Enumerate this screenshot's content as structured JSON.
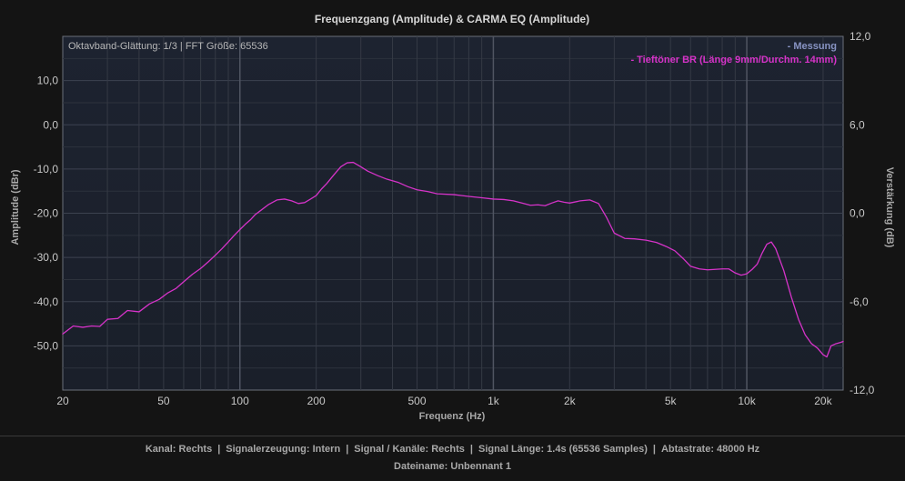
{
  "chart_data": {
    "type": "line",
    "title": "Frequenzgang (Amplitude) & CARMA EQ (Amplitude)",
    "xlabel": "Frequenz (Hz)",
    "ylabel": "Amplitude (dBr)",
    "y2label": "Verstärkung (dB)",
    "x_scale": "log",
    "xlim": [
      20,
      24000
    ],
    "ylim": [
      -60,
      20
    ],
    "y2lim": [
      -12,
      12
    ],
    "grid": true,
    "legend_position": "top-right",
    "x_tick_labels": [
      "20",
      "50",
      "100",
      "200",
      "500",
      "1k",
      "2k",
      "5k",
      "10k",
      "20k"
    ],
    "x_tick_values": [
      20,
      50,
      100,
      200,
      500,
      1000,
      2000,
      5000,
      10000,
      20000
    ],
    "y_tick_labels": [
      "10,0",
      "0,0",
      "-10,0",
      "-20,0",
      "-30,0",
      "-40,0",
      "-50,0"
    ],
    "y_tick_values": [
      10,
      0,
      -10,
      -20,
      -30,
      -40,
      -50
    ],
    "y2_tick_labels": [
      "12,0",
      "6,0",
      "0,0",
      "-6,0",
      "-12,0"
    ],
    "y2_tick_values": [
      12,
      6,
      0,
      -6,
      -12
    ],
    "annotation": "Oktavband-Glättung: 1/3 | FFT Größe: 65536",
    "series": [
      {
        "name": "- Messung",
        "color": "#8894c4",
        "x": [],
        "y": []
      },
      {
        "name": "- Tieftöner BR (Länge 9mm/Durchm. 14mm)",
        "color": "#d633c9",
        "x": [
          20,
          22,
          24,
          26,
          28,
          30,
          33,
          36,
          40,
          44,
          48,
          52,
          56,
          60,
          65,
          70,
          75,
          80,
          85,
          90,
          95,
          100,
          105,
          110,
          115,
          120,
          130,
          140,
          150,
          160,
          170,
          180,
          190,
          200,
          210,
          220,
          235,
          250,
          265,
          280,
          300,
          320,
          350,
          380,
          420,
          460,
          500,
          550,
          600,
          700,
          800,
          900,
          1000,
          1100,
          1200,
          1300,
          1400,
          1500,
          1600,
          1700,
          1800,
          1900,
          2000,
          2200,
          2400,
          2600,
          2800,
          3000,
          3300,
          3600,
          4000,
          4400,
          4800,
          5200,
          5600,
          6000,
          6500,
          7000,
          7500,
          8000,
          8500,
          9000,
          9500,
          10000,
          10500,
          11000,
          11500,
          12000,
          12500,
          13000,
          14000,
          15000,
          16000,
          17000,
          18000,
          19000,
          20000,
          20700,
          21500,
          22500,
          23500,
          24000
        ],
        "y": [
          -47.3,
          -45.5,
          -45.8,
          -45.5,
          -45.6,
          -44,
          -43.8,
          -42,
          -42.3,
          -40.5,
          -39.5,
          -38,
          -37,
          -35.5,
          -33.8,
          -32.5,
          -31,
          -29.5,
          -28,
          -26.5,
          -25,
          -23.7,
          -22.5,
          -21.5,
          -20.3,
          -19.5,
          -18,
          -17,
          -16.8,
          -17.2,
          -17.8,
          -17.6,
          -16.8,
          -16,
          -14.5,
          -13.3,
          -11.3,
          -9.5,
          -8.6,
          -8.5,
          -9.5,
          -10.5,
          -11.5,
          -12.3,
          -13,
          -14,
          -14.7,
          -15.1,
          -15.6,
          -15.8,
          -16.2,
          -16.5,
          -16.8,
          -16.9,
          -17.2,
          -17.7,
          -18.2,
          -18.1,
          -18.3,
          -17.7,
          -17.2,
          -17.5,
          -17.7,
          -17.2,
          -17,
          -17.8,
          -21,
          -24.5,
          -25.7,
          -25.8,
          -26.1,
          -26.6,
          -27.5,
          -28.5,
          -30.2,
          -32,
          -32.6,
          -32.8,
          -32.7,
          -32.6,
          -32.6,
          -33.5,
          -34,
          -33.7,
          -32.7,
          -31.5,
          -29,
          -27,
          -26.5,
          -28,
          -33,
          -39,
          -44,
          -47.5,
          -49.5,
          -50.5,
          -52,
          -52.5,
          -50,
          -49.5,
          -49.2,
          -49
        ]
      }
    ]
  },
  "footer": {
    "kanal": "Kanal: Rechts",
    "signalerzeugung": "Signalerzeugung: Intern",
    "signal_kanaele": "Signal / Kanäle: Rechts",
    "signal_laenge": "Signal Länge: 1.4s (65536 Samples)",
    "abtastrate": "Abtastrate: 48000 Hz",
    "dateiname": "Dateiname: Unbennant 1"
  }
}
